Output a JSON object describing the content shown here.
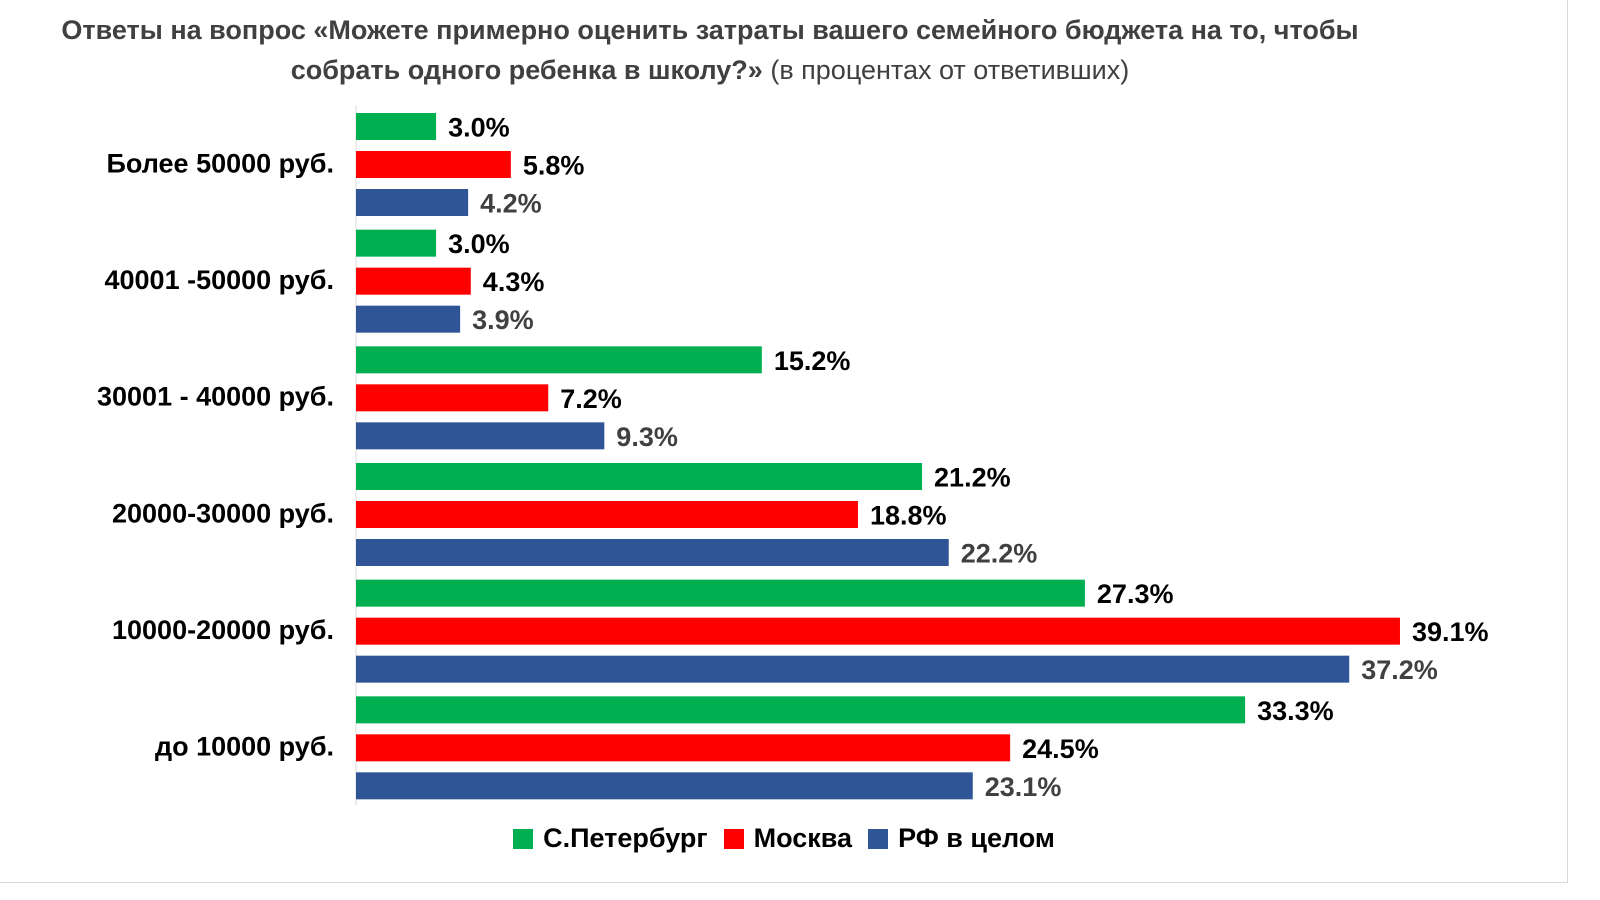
{
  "chart_data": {
    "type": "bar",
    "orientation": "horizontal",
    "title_strong": "Ответы на вопрос «Можете примерно оценить затраты вашего семейного бюджета на то, чтобы собрать одного ребенка в школу?»",
    "title_note": "(в процентах от ответивших)",
    "categories": [
      "Более 50000 руб.",
      "40001 -50000 руб.",
      "30001 - 40000 руб.",
      "20000-30000 руб.",
      "10000-20000 руб.",
      "до 10000 руб."
    ],
    "series": [
      {
        "name": "С.Петербург",
        "color": "#00b050",
        "label_color": "#000000",
        "values": [
          3.0,
          3.0,
          15.2,
          21.2,
          27.3,
          33.3
        ],
        "labels": [
          "3.0%",
          "3.0%",
          "15.2%",
          "21.2%",
          "27.3%",
          "33.3%"
        ]
      },
      {
        "name": "Москва",
        "color": "#ff0000",
        "label_color": "#000000",
        "values": [
          5.8,
          4.3,
          7.2,
          18.8,
          39.1,
          24.5
        ],
        "labels": [
          "5.8%",
          "4.3%",
          "7.2%",
          "18.8%",
          "39.1%",
          "24.5%"
        ]
      },
      {
        "name": "РФ в целом",
        "color": "#2f5597",
        "label_color": "#404040",
        "values": [
          4.2,
          3.9,
          9.3,
          22.2,
          37.2,
          23.1
        ],
        "labels": [
          "4.2%",
          "3.9%",
          "9.3%",
          "22.2%",
          "37.2%",
          "23.1%"
        ]
      }
    ],
    "xlim": [
      0,
      40
    ],
    "grid": false,
    "legend_position": "bottom",
    "axis_color": "#d9d9d9"
  }
}
